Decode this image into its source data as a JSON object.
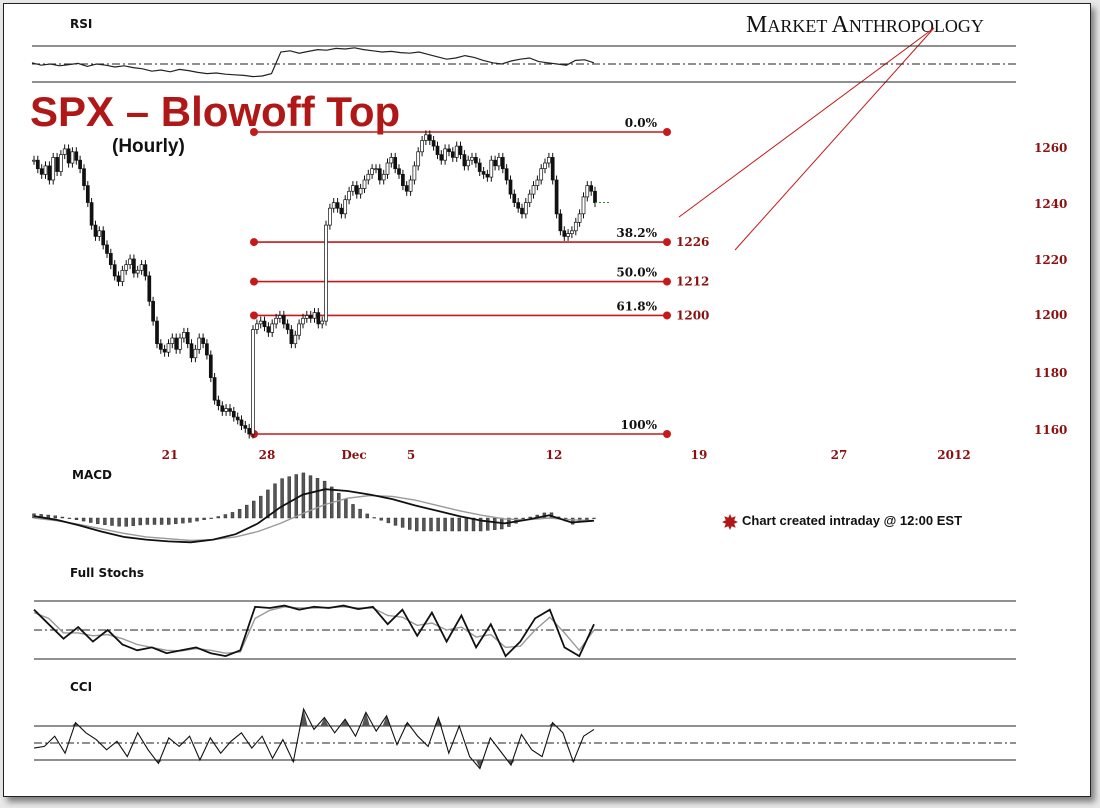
{
  "brand": {
    "first": "M",
    "first_rest": "ARKET",
    "second": "A",
    "second_rest": "NTHROPOLOGY"
  },
  "colors": {
    "accent": "#b01818",
    "fib": "#c41a1a",
    "ticks": "#8b1010"
  },
  "chart_data": {
    "type": "line",
    "title": "SPX – Blowoff Top",
    "subtitle": "(Hourly)",
    "note": "Chart created intraday @ 12:00 EST",
    "xlabel": "",
    "ylabel": "",
    "ylim": [
      1157,
      1280
    ],
    "x_ticks": [
      "21",
      "28",
      "Dec",
      "5",
      "12",
      "19",
      "27",
      "2012"
    ],
    "y_ticks": [
      1260,
      1240,
      1220,
      1200,
      1180,
      1160
    ],
    "fib_levels": [
      {
        "pct": "0.0%",
        "price": 1265,
        "value_label": ""
      },
      {
        "pct": "38.2%",
        "price": 1226,
        "value_label": "1226"
      },
      {
        "pct": "50.0%",
        "price": 1212,
        "value_label": "1212"
      },
      {
        "pct": "61.8%",
        "price": 1200,
        "value_label": "1200"
      },
      {
        "pct": "100%",
        "price": 1158,
        "value_label": ""
      }
    ],
    "price_series": {
      "name": "",
      "values": [
        1255,
        1252,
        1250,
        1253,
        1248,
        1256,
        1251,
        1257,
        1259,
        1254,
        1258,
        1255,
        1252,
        1246,
        1240,
        1232,
        1228,
        1230,
        1225,
        1222,
        1218,
        1214,
        1212,
        1216,
        1218,
        1220,
        1215,
        1216,
        1218,
        1214,
        1205,
        1198,
        1190,
        1188,
        1187,
        1190,
        1192,
        1188,
        1192,
        1194,
        1190,
        1185,
        1188,
        1192,
        1190,
        1186,
        1178,
        1170,
        1168,
        1166,
        1167,
        1166,
        1164,
        1163,
        1161,
        1160,
        1158,
        1195,
        1197,
        1198,
        1196,
        1194,
        1197,
        1199,
        1200,
        1197,
        1195,
        1190,
        1193,
        1197,
        1199,
        1200,
        1199,
        1201,
        1197,
        1198,
        1232,
        1238,
        1240,
        1238,
        1236,
        1241,
        1244,
        1246,
        1243,
        1245,
        1248,
        1250,
        1252,
        1252,
        1248,
        1250,
        1254,
        1256,
        1252,
        1250,
        1246,
        1244,
        1248,
        1253,
        1258,
        1262,
        1264,
        1262,
        1260,
        1257,
        1255,
        1259,
        1258,
        1256,
        1260,
        1257,
        1253,
        1255,
        1256,
        1254,
        1251,
        1250,
        1249,
        1255,
        1253,
        1256,
        1252,
        1248,
        1243,
        1240,
        1238,
        1236,
        1240,
        1243,
        1246,
        1248,
        1252,
        1254,
        1256,
        1248,
        1236,
        1230,
        1228,
        1229,
        1230,
        1233,
        1236,
        1242,
        1246,
        1244,
        1240
      ]
    },
    "rsi": {
      "name": "RSI",
      "values": [
        52,
        48,
        50,
        47,
        49,
        51,
        46,
        50,
        48,
        45,
        47,
        44,
        42,
        38,
        40,
        37,
        41,
        39,
        36,
        34,
        35,
        33,
        32,
        31,
        29,
        30,
        34,
        70,
        72,
        68,
        71,
        74,
        73,
        76,
        75,
        77,
        74,
        72,
        70,
        71,
        69,
        68,
        70,
        66,
        62,
        58,
        60,
        64,
        61,
        56,
        52,
        50,
        55,
        58,
        60,
        54,
        52,
        50,
        48,
        56,
        57,
        52
      ]
    },
    "macd": {
      "name": "MACD",
      "line": [
        0.2,
        -0.2,
        -0.8,
        -1.5,
        -2.1,
        -2.4,
        -2.6,
        -2.7,
        -2.4,
        -1.8,
        -0.6,
        1.2,
        2.6,
        3.2,
        3.0,
        2.6,
        2.1,
        1.4,
        0.8,
        0.2,
        -0.3,
        -0.6,
        -0.2,
        0.3,
        -0.5,
        -0.3
      ],
      "signal": [
        0.0,
        -0.3,
        -0.7,
        -1.2,
        -1.7,
        -2.1,
        -2.3,
        -2.5,
        -2.4,
        -2.1,
        -1.5,
        -0.6,
        0.5,
        1.5,
        2.2,
        2.5,
        2.4,
        2.0,
        1.4,
        0.8,
        0.3,
        -0.1,
        -0.2,
        0.0,
        -0.2,
        -0.3
      ]
    },
    "stochastics": {
      "name": "Full Stochs",
      "fast": [
        85,
        60,
        35,
        55,
        30,
        50,
        25,
        15,
        20,
        10,
        15,
        20,
        10,
        5,
        15,
        90,
        88,
        92,
        85,
        90,
        88,
        92,
        86,
        90,
        60,
        85,
        40,
        80,
        30,
        75,
        20,
        60,
        5,
        30,
        70,
        85,
        20,
        5,
        60
      ],
      "slow": [
        80,
        70,
        45,
        45,
        40,
        42,
        35,
        25,
        20,
        15,
        14,
        18,
        15,
        10,
        12,
        70,
        84,
        90,
        88,
        88,
        89,
        90,
        88,
        88,
        75,
        72,
        58,
        62,
        50,
        55,
        38,
        42,
        20,
        22,
        50,
        72,
        45,
        15,
        50
      ]
    },
    "cci": {
      "name": "CCI",
      "values": [
        -30,
        -20,
        40,
        -60,
        120,
        60,
        20,
        -40,
        10,
        -80,
        60,
        -40,
        -120,
        30,
        -20,
        40,
        -100,
        30,
        -60,
        10,
        60,
        -30,
        40,
        -90,
        20,
        -110,
        200,
        80,
        150,
        60,
        140,
        40,
        180,
        70,
        160,
        -10,
        120,
        40,
        -20,
        150,
        -60,
        100,
        -80,
        -150,
        30,
        -50,
        -130,
        50,
        -40,
        -80,
        120,
        60,
        -110,
        40,
        80
      ]
    }
  }
}
